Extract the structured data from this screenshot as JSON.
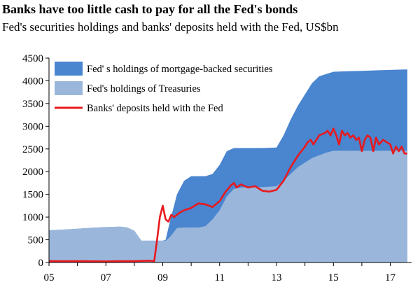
{
  "chart_data": {
    "type": "area",
    "title": "Banks have too little cash to pay for all the Fed's bonds",
    "subtitle": "Fed's securities holdings and banks' deposits held with the Fed, US$bn",
    "xlabel": "",
    "ylabel": "",
    "xlim": [
      2005.0,
      2017.75
    ],
    "ylim": [
      0,
      4500
    ],
    "x_ticks": [
      2005,
      2007,
      2009,
      2011,
      2013,
      2015,
      2017
    ],
    "x_tick_labels": [
      "05",
      "07",
      "09",
      "11",
      "13",
      "15",
      "17"
    ],
    "y_ticks": [
      0,
      500,
      1000,
      1500,
      2000,
      2500,
      3000,
      3500,
      4000,
      4500
    ],
    "y_tick_labels": [
      "0",
      "500",
      "1000",
      "1500",
      "2000",
      "2500",
      "3000",
      "3500",
      "4000",
      "4500"
    ],
    "grid": false,
    "legend_position": "top-left",
    "series": [
      {
        "name": "Fed's holdings of Treasuries",
        "kind": "area",
        "color": "#9ab7db",
        "x": [
          2005.0,
          2005.5,
          2006.0,
          2006.5,
          2007.0,
          2007.5,
          2007.75,
          2008.0,
          2008.25,
          2008.5,
          2008.75,
          2008.9,
          2009.0,
          2009.1,
          2009.25,
          2009.5,
          2009.75,
          2010.0,
          2010.25,
          2010.5,
          2010.75,
          2011.0,
          2011.25,
          2011.5,
          2011.75,
          2012.0,
          2012.5,
          2013.0,
          2013.25,
          2013.5,
          2013.75,
          2014.0,
          2014.25,
          2014.5,
          2014.75,
          2015.0,
          2015.5,
          2016.0,
          2016.5,
          2017.0,
          2017.5,
          2017.6
        ],
        "values": [
          710,
          725,
          745,
          765,
          780,
          790,
          770,
          700,
          480,
          480,
          480,
          480,
          480,
          480,
          560,
          760,
          770,
          770,
          770,
          800,
          950,
          1150,
          1450,
          1620,
          1650,
          1660,
          1660,
          1680,
          1800,
          1950,
          2100,
          2200,
          2300,
          2360,
          2420,
          2460,
          2460,
          2460,
          2460,
          2460,
          2460,
          2460
        ]
      },
      {
        "name": "Fed' s holdings of mortgage-backed securities",
        "kind": "area_stacked_total",
        "color": "#4a85cf",
        "x": [
          2005.0,
          2005.5,
          2006.0,
          2006.5,
          2007.0,
          2007.5,
          2007.75,
          2008.0,
          2008.25,
          2008.5,
          2008.75,
          2008.9,
          2009.0,
          2009.1,
          2009.25,
          2009.5,
          2009.75,
          2010.0,
          2010.25,
          2010.5,
          2010.75,
          2011.0,
          2011.25,
          2011.5,
          2011.75,
          2012.0,
          2012.5,
          2013.0,
          2013.25,
          2013.5,
          2013.75,
          2014.0,
          2014.25,
          2014.5,
          2014.75,
          2015.0,
          2015.5,
          2016.0,
          2016.5,
          2017.0,
          2017.5,
          2017.6
        ],
        "values": [
          710,
          725,
          745,
          765,
          780,
          790,
          770,
          700,
          480,
          480,
          480,
          480,
          480,
          500,
          900,
          1500,
          1800,
          1900,
          1900,
          1900,
          1950,
          2150,
          2450,
          2520,
          2520,
          2520,
          2520,
          2530,
          2800,
          3150,
          3450,
          3700,
          3950,
          4100,
          4150,
          4200,
          4210,
          4220,
          4230,
          4240,
          4250,
          4250
        ]
      },
      {
        "name": "Banks' deposits held with the Fed",
        "kind": "line",
        "color": "#e8191e",
        "x": [
          2005.0,
          2006.0,
          2007.0,
          2007.5,
          2008.0,
          2008.5,
          2008.7,
          2008.8,
          2008.9,
          2009.0,
          2009.1,
          2009.2,
          2009.3,
          2009.4,
          2009.5,
          2009.6,
          2009.75,
          2010.0,
          2010.25,
          2010.5,
          2010.75,
          2011.0,
          2011.2,
          2011.4,
          2011.5,
          2011.6,
          2011.75,
          2012.0,
          2012.25,
          2012.5,
          2012.75,
          2013.0,
          2013.25,
          2013.5,
          2013.75,
          2014.0,
          2014.1,
          2014.2,
          2014.3,
          2014.5,
          2014.7,
          2014.8,
          2014.9,
          2015.0,
          2015.1,
          2015.2,
          2015.3,
          2015.4,
          2015.5,
          2015.6,
          2015.7,
          2015.8,
          2015.9,
          2016.0,
          2016.1,
          2016.2,
          2016.3,
          2016.4,
          2016.5,
          2016.6,
          2016.75,
          2017.0,
          2017.1,
          2017.2,
          2017.3,
          2017.4,
          2017.5,
          2017.6
        ],
        "values": [
          30,
          30,
          25,
          30,
          30,
          40,
          30,
          500,
          1000,
          1250,
          950,
          900,
          1050,
          1000,
          1050,
          1100,
          1150,
          1200,
          1300,
          1280,
          1220,
          1350,
          1550,
          1700,
          1750,
          1650,
          1720,
          1650,
          1680,
          1580,
          1560,
          1600,
          1800,
          2100,
          2350,
          2550,
          2650,
          2700,
          2600,
          2800,
          2850,
          2900,
          2800,
          2950,
          2800,
          2600,
          2900,
          2800,
          2850,
          2750,
          2800,
          2700,
          2750,
          2450,
          2700,
          2800,
          2750,
          2450,
          2750,
          2600,
          2700,
          2600,
          2400,
          2550,
          2450,
          2550,
          2400,
          2400
        ]
      }
    ]
  }
}
